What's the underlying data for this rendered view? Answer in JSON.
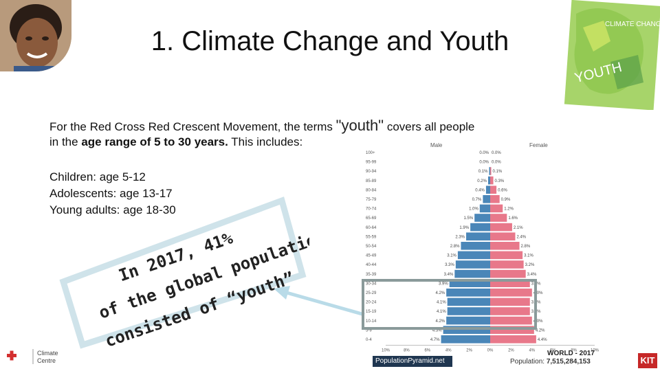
{
  "slide": {
    "title": "1. Climate Change and Youth",
    "intro_part1": "For the Red Cross Red Crescent Movement, the terms ",
    "intro_quote": "\"youth\"",
    "intro_part2": " covers all people",
    "intro_line2_a": "in the ",
    "intro_line2_b": "age range of 5 to 30 years.",
    "intro_line2_c": " This includes:",
    "groups": [
      "Children: age 5-12",
      "Adolescents: age 13-17",
      "Young adults:  age 18-30"
    ],
    "statement_lines": [
      "In 2017, 41%",
      "of the global population",
      "consisted of “youth”"
    ],
    "statement_color_accent": "#c62828",
    "callout_border_color": "#cfe3ea"
  },
  "book": {
    "title_top": "CLIMATE CHANGE",
    "title_bottom": "YOUTH",
    "color": "#7bc043"
  },
  "pyramid": {
    "left_label": "Male",
    "right_label": "Female",
    "ages": [
      "100+",
      "95-99",
      "90-94",
      "85-89",
      "80-84",
      "75-79",
      "70-74",
      "65-69",
      "60-64",
      "55-59",
      "50-54",
      "45-49",
      "40-44",
      "35-39",
      "30-34",
      "25-29",
      "20-24",
      "15-19",
      "10-14",
      "5-9",
      "0-4"
    ],
    "male_labels": [
      "0.0%",
      "0.0%",
      "0.1%",
      "0.2%",
      "0.4%",
      "0.7%",
      "1.0%",
      "1.5%",
      "1.9%",
      "2.3%",
      "2.8%",
      "3.1%",
      "3.3%",
      "3.4%",
      "3.9%",
      "4.2%",
      "4.1%",
      "4.1%",
      "4.2%",
      "4.5%",
      "4.7%"
    ],
    "female_labels": [
      "0.0%",
      "0.0%",
      "0.1%",
      "0.3%",
      "0.6%",
      "0.9%",
      "1.2%",
      "1.6%",
      "2.1%",
      "2.4%",
      "2.8%",
      "3.1%",
      "3.2%",
      "3.4%",
      "3.8%",
      "4.0%",
      "3.8%",
      "3.8%",
      "4.0%",
      "4.2%",
      "4.4%"
    ],
    "male_values": [
      0.0,
      0.0,
      0.1,
      0.2,
      0.4,
      0.7,
      1.0,
      1.5,
      1.9,
      2.3,
      2.8,
      3.1,
      3.3,
      3.4,
      3.9,
      4.2,
      4.1,
      4.1,
      4.2,
      4.5,
      4.7
    ],
    "female_values": [
      0.0,
      0.0,
      0.1,
      0.3,
      0.6,
      0.9,
      1.2,
      1.6,
      2.1,
      2.4,
      2.8,
      3.1,
      3.2,
      3.4,
      3.8,
      4.0,
      3.8,
      3.8,
      4.0,
      4.2,
      4.4
    ],
    "axis_ticks": [
      "10%",
      "8%",
      "6%",
      "4%",
      "2%",
      "0%",
      "2%",
      "4%",
      "6%",
      "8%",
      "10%"
    ],
    "male_color": "#4a86b8",
    "female_color": "#e8788a",
    "source_label": "PopulationPyramid.net",
    "world_label": "WORLD - 2017",
    "population_label": "Population: ",
    "population_value": "7,515,284,153"
  },
  "footer": {
    "logo_line1": "Climate",
    "logo_line2": "Centre",
    "kit": "KIT"
  }
}
